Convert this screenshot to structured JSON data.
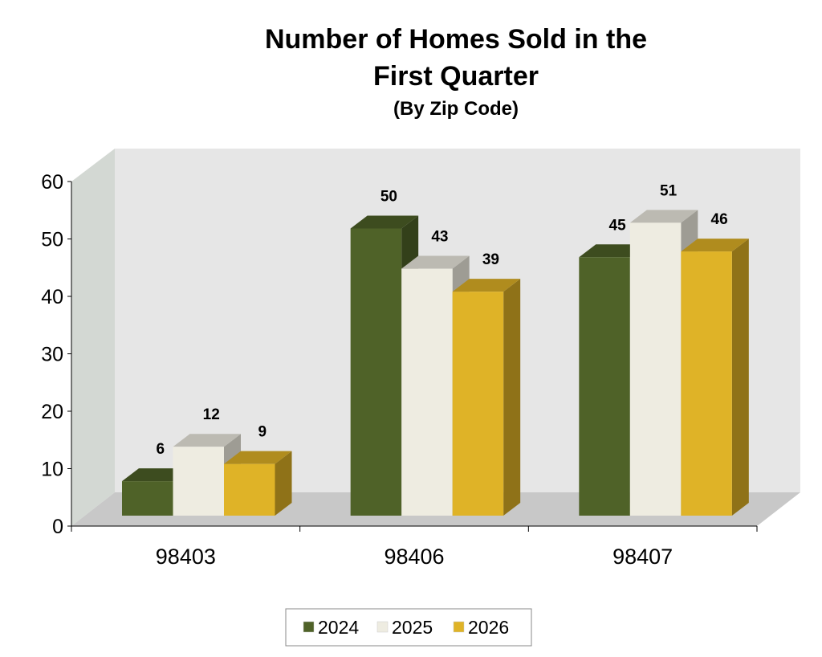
{
  "chart_data": {
    "type": "bar",
    "style": "3d-clustered-column",
    "title": "Number of Homes Sold in the First Quarter",
    "title_lines": [
      "Number of Homes Sold in the",
      "First Quarter"
    ],
    "subtitle": "(By Zip Code)",
    "categories": [
      "98403",
      "98406",
      "98407"
    ],
    "series": [
      {
        "name": "2024",
        "values": [
          6,
          50,
          45
        ],
        "color": "#4f6228",
        "top": "#3d4c1f",
        "side": "#33401a"
      },
      {
        "name": "2025",
        "values": [
          12,
          43,
          51
        ],
        "color": "#eeece1",
        "top": "#bcbab2",
        "side": "#9e9c94"
      },
      {
        "name": "2026",
        "values": [
          9,
          39,
          46
        ],
        "color": "#dfb327",
        "top": "#b08c1e",
        "side": "#8f7218"
      }
    ],
    "ylim": [
      0,
      60
    ],
    "yticks": [
      0,
      10,
      20,
      30,
      40,
      50,
      60
    ],
    "data_labels": true,
    "grid": false,
    "legend": "bottom",
    "wall_color": "#e6e6e6",
    "side_wall_color": "#d3d8d3",
    "floor_color": "#c8c8c8"
  }
}
